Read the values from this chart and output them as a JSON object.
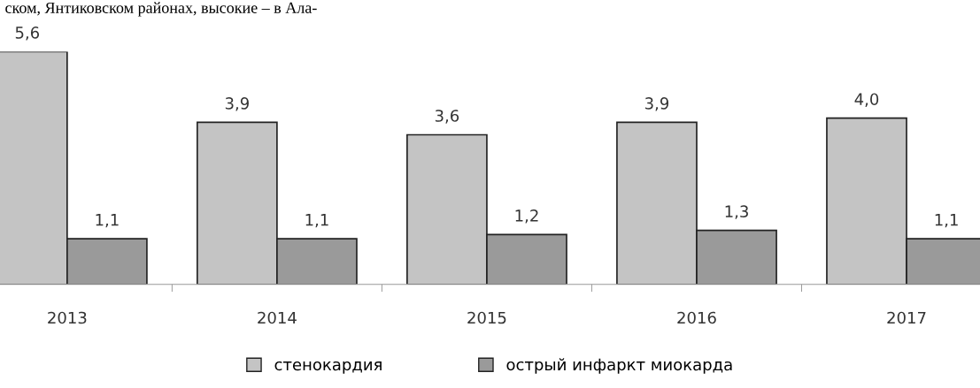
{
  "chart_data": {
    "type": "bar",
    "categories": [
      "2013",
      "2014",
      "2015",
      "2016",
      "2017"
    ],
    "series": [
      {
        "name": "стенокардия",
        "color": "#c4c4c4",
        "values": [
          5.6,
          3.9,
          3.6,
          3.9,
          4.0
        ],
        "value_labels": [
          "5,6",
          "3,9",
          "3,6",
          "3,9",
          "4,0"
        ]
      },
      {
        "name": "острый инфаркт миокарда",
        "color": "#9a9a9a",
        "values": [
          1.1,
          1.1,
          1.2,
          1.3,
          1.1
        ],
        "value_labels": [
          "1,1",
          "1,1",
          "1,2",
          "1,3",
          "1,1"
        ]
      }
    ],
    "annotations": [
      "ском, Янтиковском районах, высокие – в Ала-"
    ],
    "legend": "bottom",
    "grid": false
  }
}
